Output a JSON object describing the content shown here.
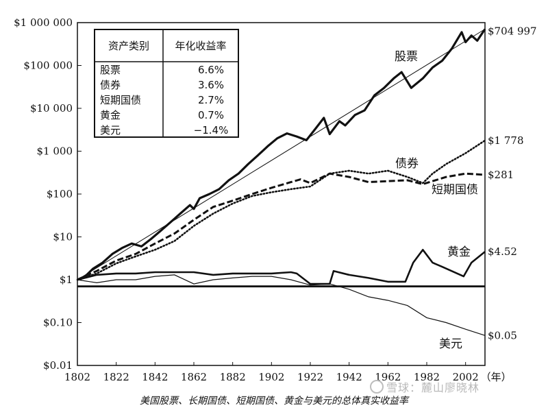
{
  "caption": "美国股票、长期国债、短期国债、黄金与美元的总体真实收益率",
  "watermark": "雪球：麓山廖晓林",
  "chart_data": {
    "type": "line",
    "y_scale": "log",
    "ylim": [
      0.01,
      1000000
    ],
    "xlim": [
      1802,
      2012
    ],
    "y_ticks": [
      {
        "value": 1000000,
        "label": "$1 000 000"
      },
      {
        "value": 100000,
        "label": "$100 000"
      },
      {
        "value": 10000,
        "label": "$10 000"
      },
      {
        "value": 1000,
        "label": "$1 000"
      },
      {
        "value": 100,
        "label": "$100"
      },
      {
        "value": 10,
        "label": "$10"
      },
      {
        "value": 1,
        "label": "$1"
      },
      {
        "value": 0.1,
        "label": "$0.10"
      },
      {
        "value": 0.01,
        "label": "$0.01"
      }
    ],
    "x_ticks": [
      1802,
      1822,
      1842,
      1862,
      1882,
      1902,
      1922,
      1942,
      1962,
      1982,
      2002
    ],
    "x_unit_label": "（年）",
    "series": [
      {
        "name": "股票",
        "end_label": "$704 997",
        "style": "thick",
        "x": [
          1802,
          1806,
          1810,
          1815,
          1820,
          1825,
          1830,
          1835,
          1840,
          1845,
          1850,
          1855,
          1860,
          1862,
          1865,
          1870,
          1875,
          1880,
          1885,
          1890,
          1895,
          1900,
          1905,
          1910,
          1915,
          1920,
          1925,
          1929,
          1932,
          1937,
          1940,
          1945,
          1950,
          1955,
          1960,
          1965,
          1969,
          1974,
          1980,
          1985,
          1990,
          1995,
          2000,
          2002,
          2005,
          2008,
          2012
        ],
        "y": [
          1,
          1.2,
          1.8,
          2.5,
          4,
          5.5,
          7,
          6,
          9,
          14,
          22,
          35,
          55,
          45,
          80,
          100,
          130,
          210,
          300,
          500,
          800,
          1300,
          2000,
          2600,
          2200,
          1800,
          3500,
          6000,
          2500,
          5000,
          4000,
          7000,
          9000,
          20000,
          30000,
          50000,
          70000,
          30000,
          50000,
          90000,
          130000,
          250000,
          600000,
          350000,
          500000,
          380000,
          704997
        ]
      },
      {
        "name": "债券",
        "end_label": "$1 778",
        "style": "dotted",
        "x": [
          1802,
          1812,
          1822,
          1832,
          1842,
          1852,
          1862,
          1872,
          1882,
          1892,
          1902,
          1912,
          1922,
          1932,
          1942,
          1952,
          1962,
          1972,
          1980,
          1985,
          1992,
          2002,
          2012
        ],
        "y": [
          1,
          1.4,
          2.4,
          3.5,
          5,
          8,
          18,
          35,
          60,
          90,
          110,
          130,
          150,
          300,
          350,
          300,
          350,
          250,
          180,
          300,
          500,
          900,
          1778
        ]
      },
      {
        "name": "短期国债",
        "end_label": "$281",
        "style": "dashed",
        "x": [
          1802,
          1812,
          1822,
          1832,
          1842,
          1852,
          1862,
          1872,
          1882,
          1892,
          1902,
          1912,
          1917,
          1922,
          1932,
          1942,
          1952,
          1962,
          1972,
          1980,
          1985,
          1992,
          2002,
          2012
        ],
        "y": [
          1,
          1.6,
          2.8,
          4,
          7,
          12,
          25,
          50,
          70,
          100,
          140,
          190,
          220,
          180,
          300,
          250,
          190,
          200,
          210,
          170,
          200,
          250,
          300,
          281
        ]
      },
      {
        "name": "黄金",
        "end_label": "$4.52",
        "style": "solid",
        "x": [
          1802,
          1812,
          1822,
          1832,
          1842,
          1852,
          1862,
          1872,
          1882,
          1892,
          1902,
          1912,
          1915,
          1922,
          1932,
          1934,
          1942,
          1952,
          1962,
          1971,
          1975,
          1980,
          1985,
          1990,
          2001,
          2005,
          2012
        ],
        "y": [
          1,
          1.3,
          1.4,
          1.4,
          1.5,
          1.5,
          1.5,
          1.3,
          1.4,
          1.4,
          1.4,
          1.5,
          1.4,
          0.8,
          0.8,
          1.6,
          1.3,
          1.1,
          0.9,
          0.9,
          2.5,
          5,
          2.5,
          2,
          1.2,
          2.5,
          4.52
        ]
      },
      {
        "name": "美元",
        "end_label": "$0.05",
        "style": "thin",
        "x": [
          1802,
          1812,
          1822,
          1832,
          1842,
          1852,
          1862,
          1872,
          1882,
          1892,
          1902,
          1912,
          1922,
          1932,
          1942,
          1952,
          1962,
          1972,
          1982,
          1992,
          2002,
          2012
        ],
        "y": [
          1,
          0.85,
          1,
          1,
          1.2,
          1.3,
          0.8,
          1,
          1.1,
          1.2,
          1.2,
          1,
          0.75,
          0.8,
          0.6,
          0.4,
          0.33,
          0.25,
          0.13,
          0.1,
          0.07,
          0.05
        ]
      },
      {
        "name": "",
        "end_label": "",
        "style": "reference",
        "x": [
          1802,
          2012
        ],
        "y": [
          1,
          704997
        ]
      },
      {
        "name": "",
        "end_label": "",
        "style": "baseline",
        "x": [
          1802,
          2012
        ],
        "y": [
          0.7,
          0.7
        ]
      }
    ],
    "table": {
      "headers": [
        "资产类别",
        "年化收益率"
      ],
      "rows": [
        {
          "asset": "股票",
          "rate": "6.6%"
        },
        {
          "asset": "债券",
          "rate": "3.6%"
        },
        {
          "asset": "短期国债",
          "rate": "2.7%"
        },
        {
          "asset": "黄金",
          "rate": "0.7%"
        },
        {
          "asset": "美元",
          "rate": "−1.4%"
        }
      ]
    }
  }
}
